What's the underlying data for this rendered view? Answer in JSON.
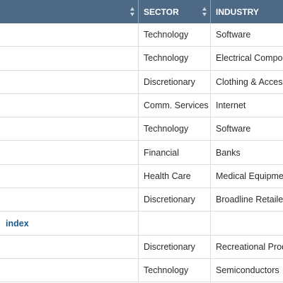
{
  "table": {
    "headers": [
      {
        "label": ""
      },
      {
        "label": "SECTOR"
      },
      {
        "label": "INDUSTRY"
      }
    ],
    "rows": [
      {
        "name": "",
        "sector": "Technology",
        "industry": "Software"
      },
      {
        "name": "",
        "sector": "Technology",
        "industry": "Electrical Components"
      },
      {
        "name": "",
        "sector": "Discretionary",
        "industry": "Clothing & Accessories"
      },
      {
        "name": "",
        "sector": "Comm. Services",
        "industry": "Internet"
      },
      {
        "name": "",
        "sector": "Technology",
        "industry": "Software"
      },
      {
        "name": "",
        "sector": "Financial",
        "industry": "Banks"
      },
      {
        "name": "",
        "sector": "Health Care",
        "industry": "Medical Equipment"
      },
      {
        "name": "",
        "sector": "Discretionary",
        "industry": "Broadline Retailers"
      },
      {
        "name": "index",
        "sector": "",
        "industry": ""
      },
      {
        "name": "",
        "sector": "Discretionary",
        "industry": "Recreational Products"
      },
      {
        "name": "",
        "sector": "Technology",
        "industry": "Semiconductors"
      }
    ]
  },
  "colors": {
    "header_bg": "#4d6986",
    "link": "#1d5a8e",
    "grid": "#d9dee3"
  }
}
